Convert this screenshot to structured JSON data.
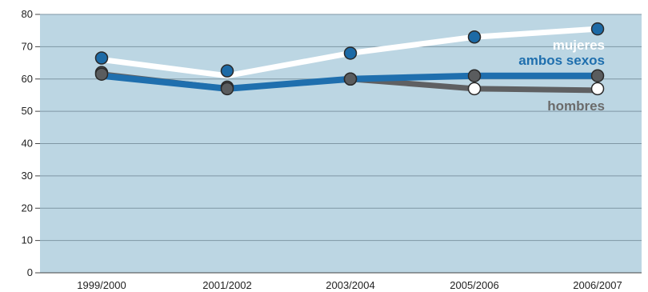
{
  "chart_data": {
    "type": "line",
    "title": "",
    "xlabel": "",
    "ylabel": "",
    "categories": [
      "1999/2000",
      "2001/2002",
      "2003/2004",
      "2005/2006",
      "2006/2007"
    ],
    "ylim": [
      0,
      80
    ],
    "yticks": [
      0,
      10,
      20,
      30,
      40,
      50,
      60,
      70,
      80
    ],
    "grid": true,
    "legend": "direct labels at right end of lines",
    "series": [
      {
        "name": "hombres",
        "line_color": "#5f6062",
        "values": [
          61.5,
          57,
          60,
          57,
          56.5
        ],
        "point_values": [
          62,
          57.5,
          60,
          57,
          57
        ],
        "point_fill": [
          "#5a5c5e",
          "#5a5c5e",
          "#5a5c5e",
          "#ffffff",
          "#ffffff"
        ]
      },
      {
        "name": "ambos sexos",
        "line_color": "#1f6fae",
        "values": [
          61,
          57,
          60,
          61,
          61
        ],
        "point_values": [
          61.5,
          57,
          60,
          61,
          61
        ],
        "point_fill": [
          "#5a5c5e",
          "#5a5c5e",
          "#5a5c5e",
          "#5a5c5e",
          "#5a5c5e"
        ]
      },
      {
        "name": "mujeres",
        "line_color": "#ffffff",
        "values": [
          66,
          61,
          68,
          73,
          75.5
        ],
        "point_values": [
          66.5,
          62.5,
          68,
          73,
          75.5
        ],
        "point_fill": [
          "#1c6aa6",
          "#1c6aa6",
          "#1c6aa6",
          "#1c6aa6",
          "#1c6aa6"
        ]
      }
    ],
    "label_colors": {
      "mujeres": "#ffffff",
      "ambos sexos": "#1f6fae",
      "hombres": "#6b6b6b"
    }
  },
  "colors": {
    "plot_background": "#bcd6e3",
    "gridline": "#7f97a4",
    "axis": "#444444"
  }
}
